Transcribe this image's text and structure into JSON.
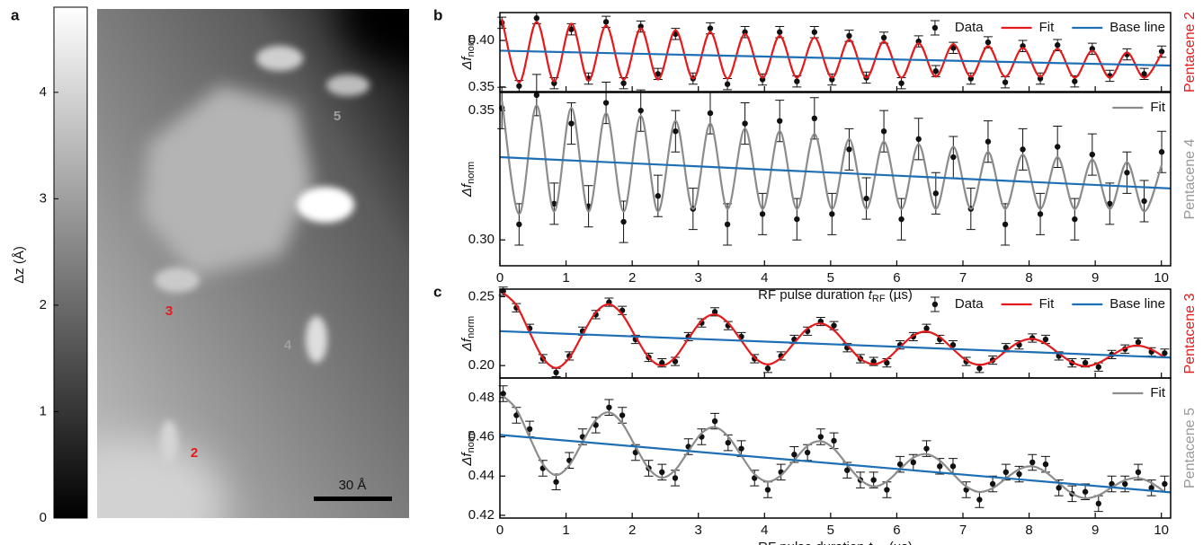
{
  "chart_data": [
    {
      "type": "image",
      "panel_label": "a",
      "colorbar": {
        "label": "Δz (Å)",
        "zlim": [
          0,
          4.8
        ],
        "zticks": [
          0,
          1,
          2,
          3,
          4
        ]
      },
      "annotations": [
        {
          "text": "5",
          "color": "#a0a0a0"
        },
        {
          "text": "3",
          "color": "#e41a1c"
        },
        {
          "text": "4",
          "color": "#a0a0a0"
        },
        {
          "text": "2",
          "color": "#e41a1c"
        }
      ],
      "scalebar": "30 Å"
    },
    {
      "type": "line",
      "panel_label": "b",
      "side_label": "Pentacene 2",
      "side_color": "#e41a1c",
      "ylabel": {
        "main": "Δf",
        "sub": "norm"
      },
      "legend": "upper right",
      "xlim": [
        0,
        10.14
      ],
      "xticks": [
        0,
        1,
        2,
        3,
        4,
        5,
        6,
        7,
        8,
        9,
        10
      ],
      "ylim": [
        0.345,
        0.43
      ],
      "yticks": [
        0.35,
        {
          "value": 0.4,
          "label": "0.40"
        }
      ],
      "x": [
        0.03,
        0.29,
        0.555,
        0.82,
        1.08,
        1.34,
        1.605,
        1.87,
        2.13,
        2.39,
        2.655,
        2.92,
        3.18,
        3.44,
        3.705,
        3.97,
        4.23,
        4.49,
        4.755,
        5.02,
        5.28,
        5.54,
        5.805,
        6.07,
        6.33,
        6.59,
        6.855,
        7.12,
        7.38,
        7.64,
        7.905,
        8.17,
        8.43,
        8.69,
        8.955,
        9.22,
        9.48,
        9.74,
        10.005
      ],
      "series": [
        {
          "name": "Data",
          "style": "errorbar",
          "color": "#111111",
          "error": 0.006,
          "values": [
            0.419,
            0.351,
            0.424,
            0.354,
            0.412,
            0.359,
            0.42,
            0.354,
            0.415,
            0.364,
            0.407,
            0.359,
            0.413,
            0.353,
            0.409,
            0.358,
            0.409,
            0.356,
            0.409,
            0.358,
            0.405,
            0.36,
            0.403,
            0.354,
            0.399,
            0.367,
            0.392,
            0.359,
            0.398,
            0.355,
            0.394,
            0.359,
            0.395,
            0.356,
            0.391,
            0.362,
            0.385,
            0.364,
            0.388
          ]
        },
        {
          "name": "Fit",
          "style": "line",
          "color": "#e41a1c",
          "values": [
            0.423,
            0.355,
            0.42,
            0.356,
            0.418,
            0.357,
            0.416,
            0.358,
            0.413,
            0.358,
            0.411,
            0.359,
            0.409,
            0.359,
            0.407,
            0.36,
            0.405,
            0.36,
            0.403,
            0.36,
            0.401,
            0.36,
            0.399,
            0.36,
            0.397,
            0.361,
            0.396,
            0.361,
            0.394,
            0.361,
            0.392,
            0.361,
            0.391,
            0.36,
            0.389,
            0.36,
            0.387,
            0.36,
            0.386
          ]
        },
        {
          "name": "Base line",
          "style": "line",
          "color": "#1f6fb5",
          "x": [
            0,
            10.14
          ],
          "values": [
            0.389,
            0.373
          ]
        }
      ]
    },
    {
      "type": "line",
      "side_label": "Pentacene 4",
      "side_color": "#999999",
      "ylabel": {
        "main": "Δf",
        "sub": "norm"
      },
      "legend": "upper right",
      "xlabel": [
        "RF pulse duration ",
        "t",
        "RF",
        " (µs)"
      ],
      "xlim": [
        0,
        10.14
      ],
      "xticks": [
        0,
        1,
        2,
        3,
        4,
        5,
        6,
        7,
        8,
        9,
        10
      ],
      "ylim": [
        0.29,
        0.357
      ],
      "yticks": [
        {
          "value": 0.3,
          "label": "0.30"
        },
        0.35
      ],
      "x": [
        0.03,
        0.29,
        0.555,
        0.82,
        1.08,
        1.34,
        1.605,
        1.87,
        2.13,
        2.39,
        2.655,
        2.92,
        3.18,
        3.44,
        3.705,
        3.97,
        4.23,
        4.49,
        4.755,
        5.02,
        5.28,
        5.54,
        5.805,
        6.07,
        6.33,
        6.59,
        6.855,
        7.12,
        7.38,
        7.64,
        7.905,
        8.17,
        8.43,
        8.69,
        8.955,
        9.22,
        9.48,
        9.74,
        10.005
      ],
      "series": [
        {
          "style": "errorbar",
          "color": "#111111",
          "error": 0.008,
          "values": [
            0.351,
            0.306,
            0.356,
            0.314,
            0.345,
            0.313,
            0.353,
            0.307,
            0.35,
            0.317,
            0.342,
            0.312,
            0.349,
            0.306,
            0.345,
            0.31,
            0.346,
            0.308,
            0.347,
            0.31,
            0.335,
            0.316,
            0.342,
            0.308,
            0.339,
            0.318,
            0.332,
            0.312,
            0.338,
            0.306,
            0.335,
            0.31,
            0.336,
            0.308,
            0.333,
            0.314,
            0.326,
            0.315,
            0.334
          ]
        },
        {
          "name": "Fit",
          "style": "line",
          "color": "#8c8c8c",
          "values": [
            0.354,
            0.31,
            0.352,
            0.311,
            0.351,
            0.311,
            0.349,
            0.311,
            0.348,
            0.311,
            0.346,
            0.312,
            0.345,
            0.312,
            0.343,
            0.312,
            0.342,
            0.312,
            0.341,
            0.312,
            0.339,
            0.312,
            0.338,
            0.312,
            0.337,
            0.312,
            0.336,
            0.312,
            0.334,
            0.312,
            0.333,
            0.312,
            0.332,
            0.312,
            0.331,
            0.312,
            0.33,
            0.311,
            0.329
          ]
        },
        {
          "style": "line",
          "color": "#1f6fb5",
          "x": [
            0,
            10.14
          ],
          "values": [
            0.332,
            0.3199
          ]
        }
      ]
    },
    {
      "type": "line",
      "panel_label": "c",
      "side_label": "Pentacene 3",
      "side_color": "#e41a1c",
      "ylabel": {
        "main": "Δf",
        "sub": "norm"
      },
      "legend": "upper right",
      "xlim": [
        0,
        10.14
      ],
      "xticks": [
        0,
        1,
        2,
        3,
        4,
        5,
        6,
        7,
        8,
        9,
        10
      ],
      "ylim": [
        0.191,
        0.2555
      ],
      "yticks": [
        {
          "value": 0.2,
          "label": "0.20"
        },
        0.25
      ],
      "x": [
        0.05,
        0.25,
        0.45,
        0.65,
        0.85,
        1.05,
        1.25,
        1.45,
        1.65,
        1.85,
        2.05,
        2.25,
        2.45,
        2.65,
        2.85,
        3.05,
        3.25,
        3.45,
        3.65,
        3.85,
        4.05,
        4.25,
        4.45,
        4.65,
        4.85,
        5.05,
        5.25,
        5.45,
        5.65,
        5.85,
        6.05,
        6.25,
        6.45,
        6.65,
        6.85,
        7.05,
        7.25,
        7.45,
        7.65,
        7.85,
        8.05,
        8.25,
        8.45,
        8.65,
        8.85,
        9.05,
        9.25,
        9.45,
        9.65,
        9.85,
        10.05
      ],
      "series": [
        {
          "name": "Data",
          "style": "errorbar",
          "color": "#111111",
          "error": 0.003,
          "values": [
            0.254,
            0.242,
            0.227,
            0.205,
            0.195,
            0.207,
            0.225,
            0.237,
            0.246,
            0.24,
            0.219,
            0.206,
            0.202,
            0.203,
            0.221,
            0.231,
            0.239,
            0.229,
            0.221,
            0.205,
            0.198,
            0.207,
            0.219,
            0.225,
            0.232,
            0.229,
            0.213,
            0.205,
            0.203,
            0.202,
            0.215,
            0.221,
            0.227,
            0.219,
            0.215,
            0.203,
            0.198,
            0.204,
            0.213,
            0.215,
            0.22,
            0.219,
            0.207,
            0.202,
            0.202,
            0.199,
            0.208,
            0.212,
            0.217,
            0.21,
            0.209
          ]
        },
        {
          "name": "Fit",
          "style": "line",
          "color": "#e41a1c",
          "values": [
            0.2527,
            0.2437,
            0.2241,
            0.2056,
            0.1983,
            0.2057,
            0.2226,
            0.2386,
            0.2445,
            0.2371,
            0.2211,
            0.2059,
            0.2,
            0.206,
            0.2196,
            0.2325,
            0.2371,
            0.231,
            0.2181,
            0.2058,
            0.2009,
            0.2056,
            0.2165,
            0.2269,
            0.2306,
            0.2256,
            0.215,
            0.2049,
            0.201,
            0.2047,
            0.2135,
            0.2218,
            0.2247,
            0.2206,
            0.212,
            0.2038,
            0.2005,
            0.2034,
            0.2105,
            0.2171,
            0.2194,
            0.2159,
            0.2089,
            0.2023,
            0.1995,
            0.2019,
            0.2074,
            0.2127,
            0.2145,
            0.2117,
            0.2059
          ]
        },
        {
          "name": "Base line",
          "style": "line",
          "color": "#1f6fb5",
          "x": [
            0,
            10.14
          ],
          "values": [
            0.225,
            0.2058
          ]
        }
      ]
    },
    {
      "type": "line",
      "side_label": "Pentacene 5",
      "side_color": "#999999",
      "ylabel": {
        "main": "Δf",
        "sub": "norm"
      },
      "legend": "upper right",
      "xlabel": [
        "RF pulse duration ",
        "t",
        "RF",
        " (µs)"
      ],
      "xlim": [
        0,
        10.14
      ],
      "xticks": [
        0,
        1,
        2,
        3,
        4,
        5,
        6,
        7,
        8,
        9,
        10
      ],
      "ylim": [
        0.4186,
        0.49
      ],
      "yticks": [
        0.42,
        0.44,
        0.46,
        0.48
      ],
      "x": [
        0.05,
        0.25,
        0.45,
        0.65,
        0.85,
        1.05,
        1.25,
        1.45,
        1.65,
        1.85,
        2.05,
        2.25,
        2.45,
        2.65,
        2.85,
        3.05,
        3.25,
        3.45,
        3.65,
        3.85,
        4.05,
        4.25,
        4.45,
        4.65,
        4.85,
        5.05,
        5.25,
        5.45,
        5.65,
        5.85,
        6.05,
        6.25,
        6.45,
        6.65,
        6.85,
        7.05,
        7.25,
        7.45,
        7.65,
        7.85,
        8.05,
        8.25,
        8.45,
        8.65,
        8.85,
        9.05,
        9.25,
        9.45,
        9.65,
        9.85,
        10.05
      ],
      "series": [
        {
          "style": "errorbar",
          "color": "#111111",
          "error": 0.004,
          "values": [
            0.482,
            0.471,
            0.464,
            0.444,
            0.437,
            0.448,
            0.46,
            0.466,
            0.475,
            0.471,
            0.452,
            0.444,
            0.442,
            0.439,
            0.455,
            0.46,
            0.468,
            0.457,
            0.454,
            0.439,
            0.433,
            0.442,
            0.451,
            0.452,
            0.46,
            0.458,
            0.443,
            0.438,
            0.438,
            0.433,
            0.446,
            0.447,
            0.454,
            0.445,
            0.445,
            0.433,
            0.428,
            0.436,
            0.442,
            0.441,
            0.447,
            0.446,
            0.434,
            0.431,
            0.432,
            0.426,
            0.436,
            0.436,
            0.442,
            0.434,
            0.436
          ]
        },
        {
          "name": "Fit",
          "style": "line",
          "color": "#8c8c8c",
          "values": [
            0.4808,
            0.474,
            0.4597,
            0.4461,
            0.4405,
            0.4456,
            0.4574,
            0.4686,
            0.4725,
            0.4668,
            0.4551,
            0.4438,
            0.4392,
            0.4431,
            0.4527,
            0.4619,
            0.4649,
            0.4602,
            0.4504,
            0.441,
            0.4372,
            0.4404,
            0.4481,
            0.4554,
            0.4578,
            0.4539,
            0.4458,
            0.4381,
            0.4347,
            0.4372,
            0.4435,
            0.4494,
            0.4512,
            0.4479,
            0.4411,
            0.4347,
            0.4319,
            0.4338,
            0.4388,
            0.4435,
            0.445,
            0.4421,
            0.4365,
            0.4311,
            0.4287,
            0.4302,
            0.4342,
            0.4379,
            0.439,
            0.4365,
            0.4319
          ]
        },
        {
          "style": "line",
          "color": "#1f6fb5",
          "x": [
            0,
            10.14
          ],
          "values": [
            0.461,
            0.4317
          ]
        }
      ]
    }
  ]
}
